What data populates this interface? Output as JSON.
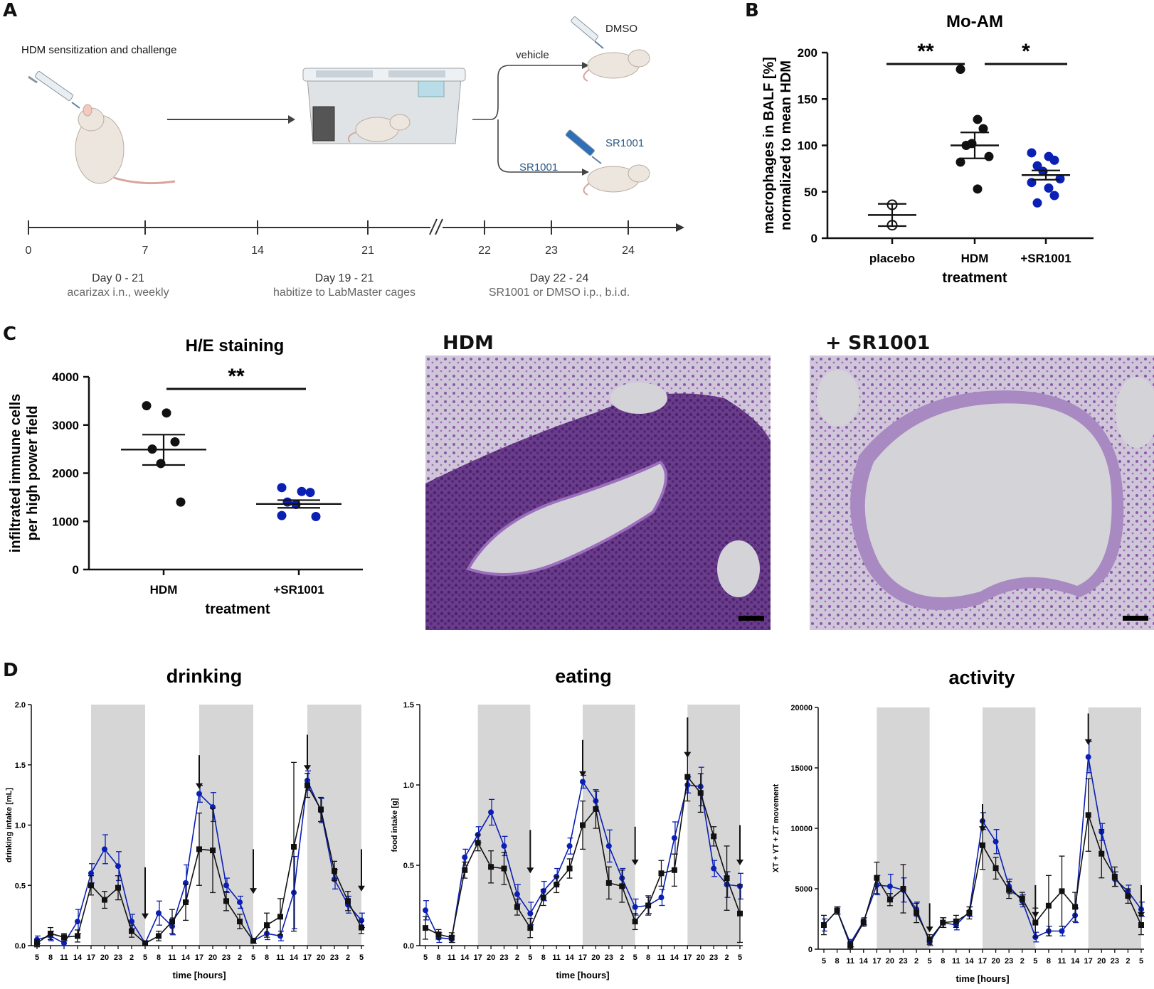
{
  "panels": {
    "A": "A",
    "B": "B",
    "C": "C",
    "D": "D"
  },
  "panelA": {
    "title": "HDM sensitization and challenge",
    "vehicle": "vehicle",
    "dmso": "DMSO",
    "sr_branch": "SR1001",
    "sr_label": "SR1001",
    "days": [
      "0",
      "7",
      "14",
      "21",
      "22",
      "23",
      "24"
    ],
    "phases": [
      {
        "head": "Day 0 - 21",
        "sub": "acarizax i.n., weekly"
      },
      {
        "head": "Day 19 - 21",
        "sub": "habitize to LabMaster cages"
      },
      {
        "head": "Day 22 - 24",
        "sub": "SR1001 or DMSO i.p., b.i.d."
      }
    ]
  },
  "colors": {
    "black": "#111111",
    "blue": "#0a1fb4",
    "shade": "#d6d6d6",
    "tissue_hdm": "#6e3f8c",
    "tissue_sr": "#a889c2"
  },
  "chart_data": [
    {
      "id": "B",
      "type": "scatter",
      "title": "Mo-AM",
      "ylabel_lines": [
        "macrophages in BALF [%]",
        "normalized to mean HDM"
      ],
      "xlabel": "treatment",
      "categories": [
        "placebo",
        "HDM",
        "+SR1001"
      ],
      "ylim": [
        0,
        200
      ],
      "yticks": [
        0,
        50,
        100,
        150,
        200
      ],
      "groups": [
        {
          "name": "placebo",
          "color": "open",
          "mean": 25,
          "sem_low": 13,
          "sem_high": 37,
          "points": [
            36,
            14
          ]
        },
        {
          "name": "HDM",
          "color": "black",
          "mean": 100,
          "sem_low": 86,
          "sem_high": 114,
          "points": [
            182,
            128,
            118,
            100,
            102,
            88,
            82,
            53
          ]
        },
        {
          "name": "+SR1001",
          "color": "blue",
          "mean": 68,
          "sem_low": 63,
          "sem_high": 73,
          "points": [
            92,
            88,
            84,
            78,
            72,
            64,
            60,
            54,
            46,
            38
          ]
        }
      ],
      "significance": [
        {
          "from": "placebo",
          "to": "HDM",
          "label": "**"
        },
        {
          "from": "HDM",
          "to": "+SR1001",
          "label": "*"
        }
      ]
    },
    {
      "id": "C",
      "type": "scatter",
      "title": "H/E staining",
      "ylabel_lines": [
        "infiltrated immune cells",
        "per high power field"
      ],
      "xlabel": "treatment",
      "categories": [
        "HDM",
        "+SR1001"
      ],
      "ylim": [
        0,
        4000
      ],
      "yticks": [
        0,
        1000,
        2000,
        3000,
        4000
      ],
      "groups": [
        {
          "name": "HDM",
          "color": "black",
          "mean": 2490,
          "sem_low": 2170,
          "sem_high": 2800,
          "points": [
            3400,
            3250,
            2650,
            2500,
            2200,
            1400
          ]
        },
        {
          "name": "+SR1001",
          "color": "blue",
          "mean": 1360,
          "sem_low": 1280,
          "sem_high": 1440,
          "points": [
            1700,
            1620,
            1600,
            1400,
            1350,
            1100,
            1120
          ]
        }
      ],
      "significance": [
        {
          "from": "HDM",
          "to": "+SR1001",
          "label": "**"
        }
      ]
    },
    {
      "id": "D-drinking",
      "type": "line",
      "title": "drinking",
      "xlabel": "time [hours]",
      "ylabel": "drinking intake [mL]",
      "ylim": [
        0,
        2.0
      ],
      "yticks": [
        "0.0",
        "0.5",
        "1.0",
        "1.5",
        "2.0"
      ],
      "x": [
        "5",
        "8",
        "11",
        "14",
        "17",
        "20",
        "23",
        "2",
        "5",
        "8",
        "11",
        "14",
        "17",
        "20",
        "23",
        "2",
        "5",
        "8",
        "11",
        "14",
        "17",
        "20",
        "23",
        "2",
        "5"
      ],
      "dark_periods": [
        [
          4,
          8
        ],
        [
          12,
          16
        ],
        [
          20,
          24
        ]
      ],
      "arrows": [
        {
          "i": 8,
          "from": 0.65,
          "to": 0.22
        },
        {
          "i": 12,
          "from": 1.58,
          "to": 1.3
        },
        {
          "i": 16,
          "from": 0.8,
          "to": 0.43
        },
        {
          "i": 20,
          "from": 1.75,
          "to": 1.45
        },
        {
          "i": 24,
          "from": 0.8,
          "to": 0.45
        }
      ],
      "series": [
        {
          "name": "HDM",
          "color": "black",
          "values": [
            0.02,
            0.1,
            0.07,
            0.08,
            0.5,
            0.38,
            0.48,
            0.12,
            0.02,
            0.08,
            0.2,
            0.36,
            0.8,
            0.79,
            0.37,
            0.2,
            0.04,
            0.17,
            0.24,
            0.82,
            1.33,
            1.13,
            0.62,
            0.37,
            0.15
          ],
          "errors": [
            0.03,
            0.05,
            0.03,
            0.05,
            0.08,
            0.07,
            0.1,
            0.05,
            0.02,
            0.04,
            0.1,
            0.15,
            0.3,
            0.35,
            0.08,
            0.06,
            0.02,
            0.1,
            0.15,
            0.7,
            0.1,
            0.1,
            0.08,
            0.08,
            0.05
          ]
        },
        {
          "name": "+SR1001",
          "color": "blue",
          "values": [
            0.05,
            0.08,
            0.02,
            0.2,
            0.6,
            0.8,
            0.66,
            0.2,
            0.02,
            0.27,
            0.16,
            0.52,
            1.26,
            1.15,
            0.5,
            0.36,
            0.04,
            0.1,
            0.08,
            0.44,
            1.37,
            1.12,
            0.55,
            0.34,
            0.21
          ],
          "errors": [
            0.03,
            0.04,
            0.02,
            0.1,
            0.08,
            0.12,
            0.12,
            0.06,
            0.02,
            0.1,
            0.07,
            0.15,
            0.07,
            0.12,
            0.06,
            0.05,
            0.02,
            0.05,
            0.04,
            0.3,
            0.08,
            0.1,
            0.08,
            0.07,
            0.06
          ]
        }
      ]
    },
    {
      "id": "D-eating",
      "type": "line",
      "title": "eating",
      "xlabel": "time [hours]",
      "ylabel": "food intake [g]",
      "ylim": [
        0,
        1.5
      ],
      "yticks": [
        "0.0",
        "0.5",
        "1.0",
        "1.5"
      ],
      "x": [
        "5",
        "8",
        "11",
        "14",
        "17",
        "20",
        "23",
        "2",
        "5",
        "8",
        "11",
        "14",
        "17",
        "20",
        "23",
        "2",
        "5",
        "8",
        "11",
        "14",
        "17",
        "20",
        "23",
        "2",
        "5"
      ],
      "dark_periods": [
        [
          4,
          8
        ],
        [
          12,
          16
        ],
        [
          20,
          24
        ]
      ],
      "arrows": [
        {
          "i": 8,
          "from": 0.72,
          "to": 0.45
        },
        {
          "i": 12,
          "from": 1.28,
          "to": 1.05
        },
        {
          "i": 16,
          "from": 0.74,
          "to": 0.5
        },
        {
          "i": 20,
          "from": 1.42,
          "to": 1.17
        },
        {
          "i": 24,
          "from": 0.75,
          "to": 0.5
        }
      ],
      "series": [
        {
          "name": "HDM",
          "color": "black",
          "values": [
            0.11,
            0.07,
            0.05,
            0.47,
            0.64,
            0.49,
            0.48,
            0.24,
            0.11,
            0.3,
            0.38,
            0.48,
            0.75,
            0.85,
            0.39,
            0.37,
            0.15,
            0.25,
            0.45,
            0.47,
            1.05,
            0.95,
            0.68,
            0.42,
            0.2
          ],
          "errors": [
            0.07,
            0.03,
            0.03,
            0.05,
            0.05,
            0.1,
            0.1,
            0.05,
            0.06,
            0.05,
            0.05,
            0.06,
            0.15,
            0.12,
            0.1,
            0.1,
            0.05,
            0.06,
            0.08,
            0.1,
            0.15,
            0.12,
            0.06,
            0.2,
            0.18
          ]
        },
        {
          "name": "+SR1001",
          "color": "blue",
          "values": [
            0.22,
            0.05,
            0.04,
            0.55,
            0.69,
            0.83,
            0.62,
            0.32,
            0.2,
            0.34,
            0.43,
            0.62,
            1.02,
            0.9,
            0.62,
            0.42,
            0.24,
            0.25,
            0.3,
            0.67,
            1.0,
            0.99,
            0.48,
            0.38,
            0.37
          ],
          "errors": [
            0.06,
            0.03,
            0.02,
            0.05,
            0.05,
            0.08,
            0.06,
            0.06,
            0.07,
            0.06,
            0.05,
            0.05,
            0.04,
            0.06,
            0.1,
            0.06,
            0.05,
            0.05,
            0.05,
            0.1,
            0.05,
            0.12,
            0.05,
            0.08,
            0.08
          ]
        }
      ]
    },
    {
      "id": "D-activity",
      "type": "line",
      "title": "activity",
      "xlabel": "time [hours]",
      "ylabel": "XT + YT + ZT movement",
      "ylim": [
        0,
        20000
      ],
      "yticks": [
        "0",
        "5000",
        "10000",
        "15000",
        "20000"
      ],
      "x": [
        "5",
        "8",
        "11",
        "14",
        "17",
        "20",
        "23",
        "2",
        "5",
        "8",
        "11",
        "14",
        "17",
        "20",
        "23",
        "2",
        "5",
        "8",
        "11",
        "14",
        "17",
        "20",
        "23",
        "2",
        "5"
      ],
      "dark_periods": [
        [
          4,
          8
        ],
        [
          12,
          16
        ],
        [
          20,
          24
        ]
      ],
      "arrows": [
        {
          "i": 8,
          "from": 3800,
          "to": 1400
        },
        {
          "i": 12,
          "from": 12000,
          "to": 9700
        },
        {
          "i": 16,
          "from": 5300,
          "to": 2600
        },
        {
          "i": 20,
          "from": 19500,
          "to": 16900
        },
        {
          "i": 24,
          "from": 5300,
          "to": 2600
        }
      ],
      "series": [
        {
          "name": "HDM",
          "color": "black",
          "values": [
            2000,
            3200,
            300,
            2200,
            5900,
            4100,
            5000,
            3000,
            800,
            2200,
            2300,
            3000,
            8600,
            6700,
            4900,
            4200,
            2200,
            3600,
            4800,
            3500,
            11100,
            7900,
            6000,
            4400,
            2000
          ],
          "errors": [
            800,
            300,
            300,
            300,
            1300,
            500,
            2000,
            800,
            400,
            400,
            500,
            500,
            2000,
            900,
            700,
            500,
            1200,
            2500,
            2900,
            1200,
            3000,
            2000,
            800,
            600,
            800
          ]
        },
        {
          "name": "+SR1001",
          "color": "blue",
          "values": [
            2000,
            3200,
            500,
            2300,
            5300,
            5200,
            4900,
            3300,
            600,
            2200,
            2000,
            3100,
            10600,
            8900,
            5200,
            4000,
            1000,
            1500,
            1500,
            2800,
            15900,
            9700,
            5800,
            4800,
            3300
          ],
          "errors": [
            500,
            300,
            300,
            300,
            800,
            1000,
            1000,
            600,
            300,
            400,
            400,
            400,
            700,
            1000,
            600,
            500,
            400,
            400,
            400,
            600,
            1300,
            700,
            600,
            500,
            600
          ]
        }
      ]
    }
  ],
  "panelC": {
    "hdm_image_title": "HDM",
    "sr_image_title": "+ SR1001"
  }
}
